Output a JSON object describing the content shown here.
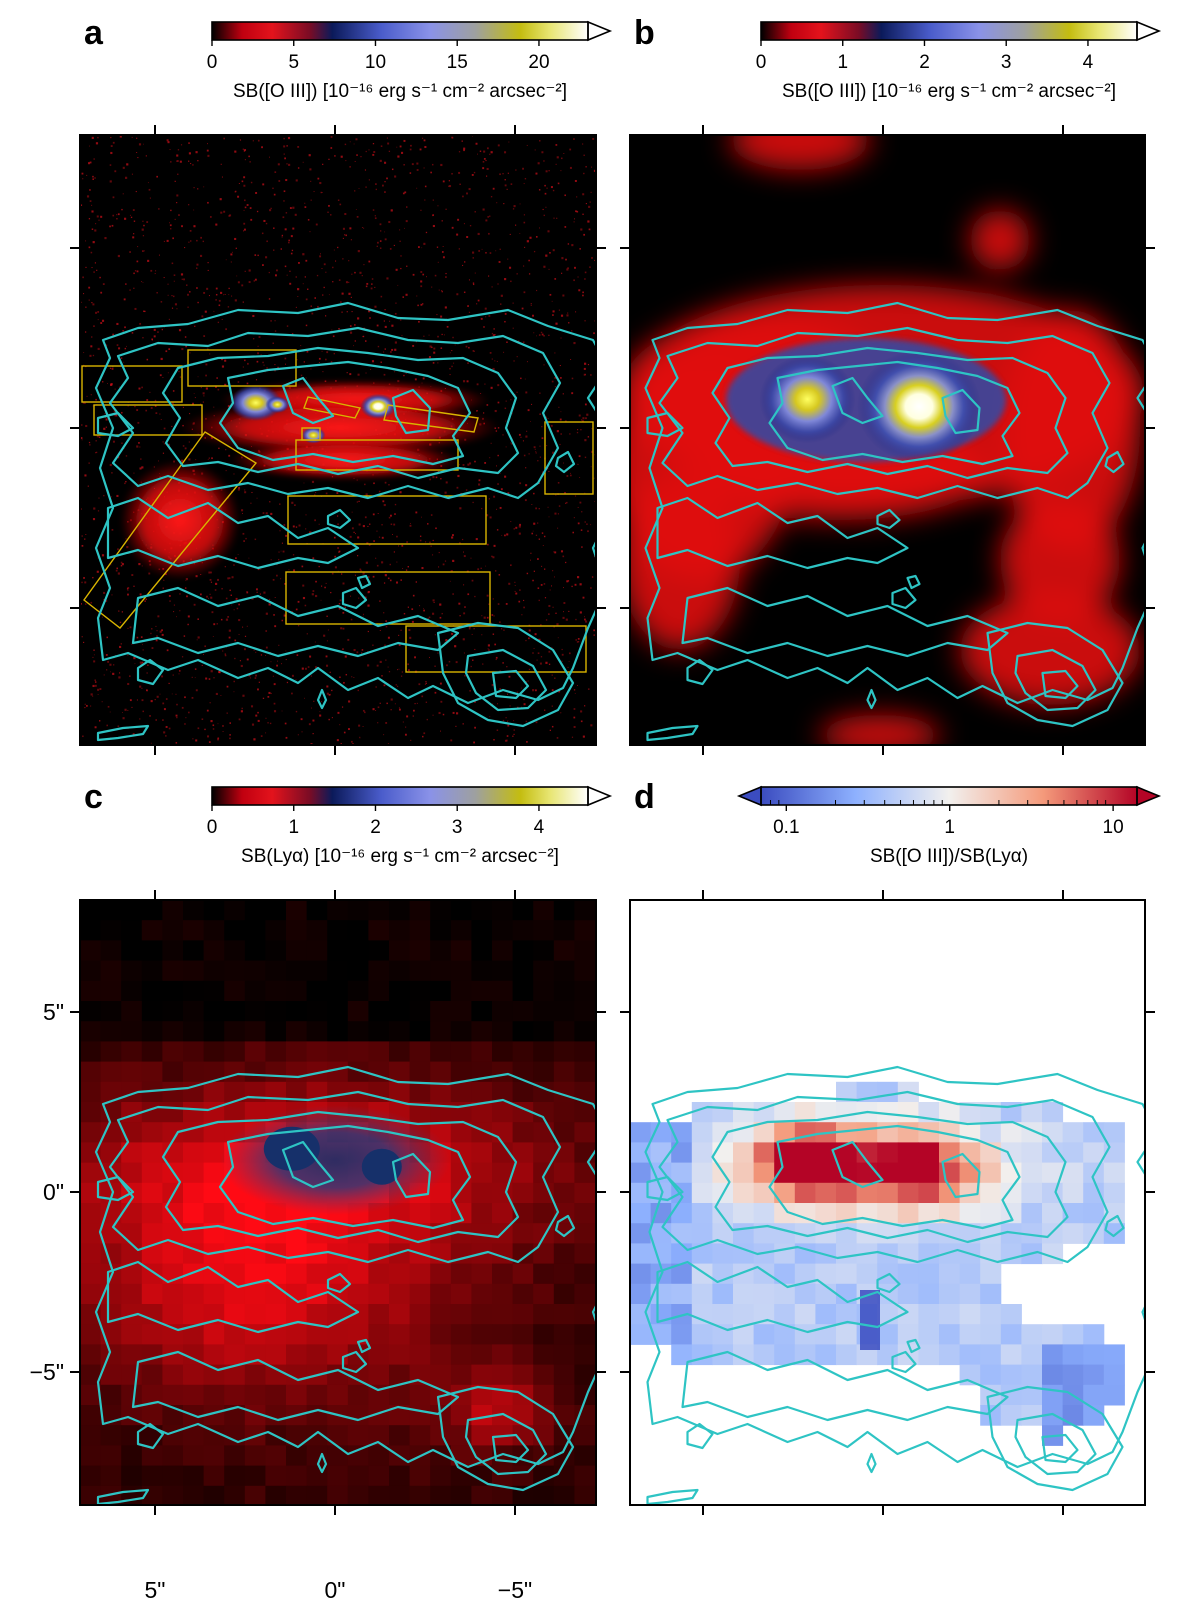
{
  "figure": {
    "panels": [
      {
        "id": "a",
        "letter": "a",
        "colorbar": {
          "cmap": "red-blue-yellow-white",
          "scale": "linear",
          "range": [
            0,
            23
          ],
          "extend": "max",
          "ticks": [
            "0",
            "5",
            "10",
            "15",
            "20"
          ],
          "tick_values": [
            0,
            5,
            10,
            15,
            20
          ],
          "label": "SB([O III]) [10⁻¹⁶ erg s⁻¹ cm⁻² arcsec⁻²]"
        },
        "image": "high-resolution [O III] map (red noise, bright clumps near center)",
        "has_boxes": true,
        "background": "#000000"
      },
      {
        "id": "b",
        "letter": "b",
        "colorbar": {
          "cmap": "red-blue-yellow-white",
          "scale": "linear",
          "range": [
            0,
            4.6
          ],
          "extend": "max",
          "ticks": [
            "0",
            "1",
            "2",
            "3",
            "4"
          ],
          "tick_values": [
            0,
            1,
            2,
            3,
            4
          ],
          "label": "SB([O III]) [10⁻¹⁶ erg s⁻¹ cm⁻² arcsec⁻²]"
        },
        "image": "smoothed [O III] map with two bright peaks",
        "has_boxes": false,
        "background": "#000000"
      },
      {
        "id": "c",
        "letter": "c",
        "colorbar": {
          "cmap": "red-blue-yellow-white",
          "scale": "linear",
          "range": [
            0,
            4.6
          ],
          "extend": "max",
          "ticks": [
            "0",
            "1",
            "2",
            "3",
            "4"
          ],
          "tick_values": [
            0,
            1,
            2,
            3,
            4
          ],
          "label": "SB(Lyα) [10⁻¹⁶ erg s⁻¹ cm⁻² arcsec⁻²]"
        },
        "image": "pixelated Lyα map",
        "has_boxes": false,
        "background": "#000000"
      },
      {
        "id": "d",
        "letter": "d",
        "colorbar": {
          "cmap": "coolwarm (blue-white-red)",
          "scale": "log",
          "range": [
            0.07,
            14
          ],
          "extend": "both",
          "ticks": [
            "0.1",
            "1",
            "10"
          ],
          "tick_values": [
            0.1,
            1,
            10
          ],
          "label": "SB([O III])/SB(Lyα)"
        },
        "image": "pixelated [O III]/Lyα ratio map",
        "has_boxes": false,
        "background": "#ffffff"
      }
    ],
    "axes": {
      "x_ticks": [
        "5\"",
        "0\"",
        "−5\""
      ],
      "y_ticks": [
        "5\"",
        "0\"",
        "−5\""
      ]
    },
    "colors": {
      "contour": "#2ec4c4",
      "box": "#d9b400"
    }
  },
  "chart_data": [
    {
      "panel": "a",
      "type": "heatmap",
      "quantity": "SB([O III])",
      "units": "10⁻¹⁶ erg s⁻¹ cm⁻² arcsec⁻²",
      "color_range": [
        0,
        23
      ],
      "peaks": [
        {
          "x": 2.2,
          "y": 0.7,
          "value": 15
        },
        {
          "x": -1.2,
          "y": 0.6,
          "value": 20
        },
        {
          "x": 0.6,
          "y": -0.2,
          "value": 12
        }
      ],
      "contour_overlay": "Lyα surface brightness"
    },
    {
      "panel": "b",
      "type": "heatmap",
      "quantity": "SB([O III])",
      "units": "10⁻¹⁶ erg s⁻¹ cm⁻² arcsec⁻²",
      "color_range": [
        0,
        4.6
      ],
      "peaks": [
        {
          "x": 2.1,
          "y": 0.8,
          "value": 3.2
        },
        {
          "x": -1.0,
          "y": 0.6,
          "value": 4.5
        },
        {
          "x": -5.0,
          "y": -6.3,
          "value": 0.8
        }
      ],
      "contour_overlay": "Lyα surface brightness"
    },
    {
      "panel": "c",
      "type": "heatmap",
      "quantity": "SB(Lyα)",
      "units": "10⁻¹⁶ erg s⁻¹ cm⁻² arcsec⁻²",
      "color_range": [
        0,
        4.6
      ],
      "x_ticks": [
        5,
        0,
        -5
      ],
      "y_ticks": [
        5,
        0,
        -5
      ],
      "peaks": [
        {
          "x": 1.2,
          "y": 1.2,
          "value": 1.1
        },
        {
          "x": -1.3,
          "y": 0.7,
          "value": 1.0
        },
        {
          "x": -5.0,
          "y": -6.3,
          "value": 0.45
        }
      ],
      "contour_overlay": "Lyα surface brightness"
    },
    {
      "panel": "d",
      "type": "heatmap",
      "quantity": "SB([O III])/SB(Lyα)",
      "color_range": [
        0.07,
        14
      ],
      "scale": "log",
      "regions": [
        {
          "x": 2.0,
          "y": 0.8,
          "value": 4
        },
        {
          "x": -1.0,
          "y": 0.6,
          "value": 3
        },
        {
          "x": 4.5,
          "y": 0.5,
          "value": 0.3
        },
        {
          "x": -5.0,
          "y": -6.3,
          "value": 0.25
        }
      ],
      "contour_overlay": "Lyα surface brightness"
    }
  ]
}
